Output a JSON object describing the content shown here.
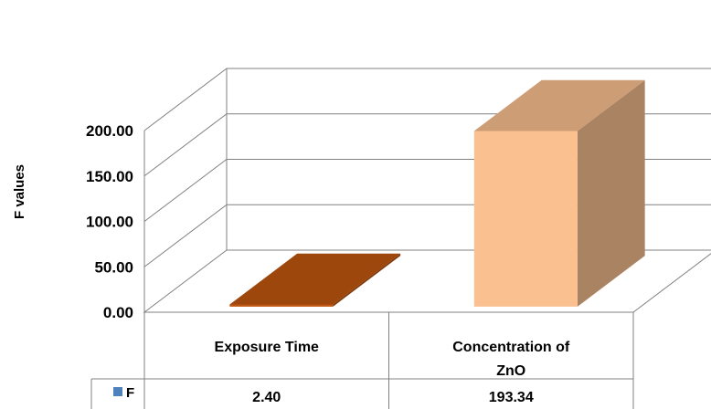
{
  "chart_data": {
    "type": "bar",
    "title": "",
    "ylabel": "F values",
    "xlabel": "",
    "ylim": [
      0,
      200
    ],
    "yticks": [
      "0.00",
      "50.00",
      "100.00",
      "150.00",
      "200.00"
    ],
    "categories": [
      "Exposure Time",
      "Concentration of ZnO"
    ],
    "categories_display": [
      [
        "Exposure Time"
      ],
      [
        "Concentration of",
        "ZnO"
      ]
    ],
    "series": [
      {
        "name": "F",
        "values": [
          2.4,
          193.34
        ],
        "value_labels": [
          "2.40",
          "193.34"
        ],
        "colors": [
          "#C0560F",
          "#FAC090"
        ]
      }
    ],
    "data_table": true,
    "legend_key_color": "#4F81BD",
    "grid": true,
    "style": "3d-column"
  }
}
